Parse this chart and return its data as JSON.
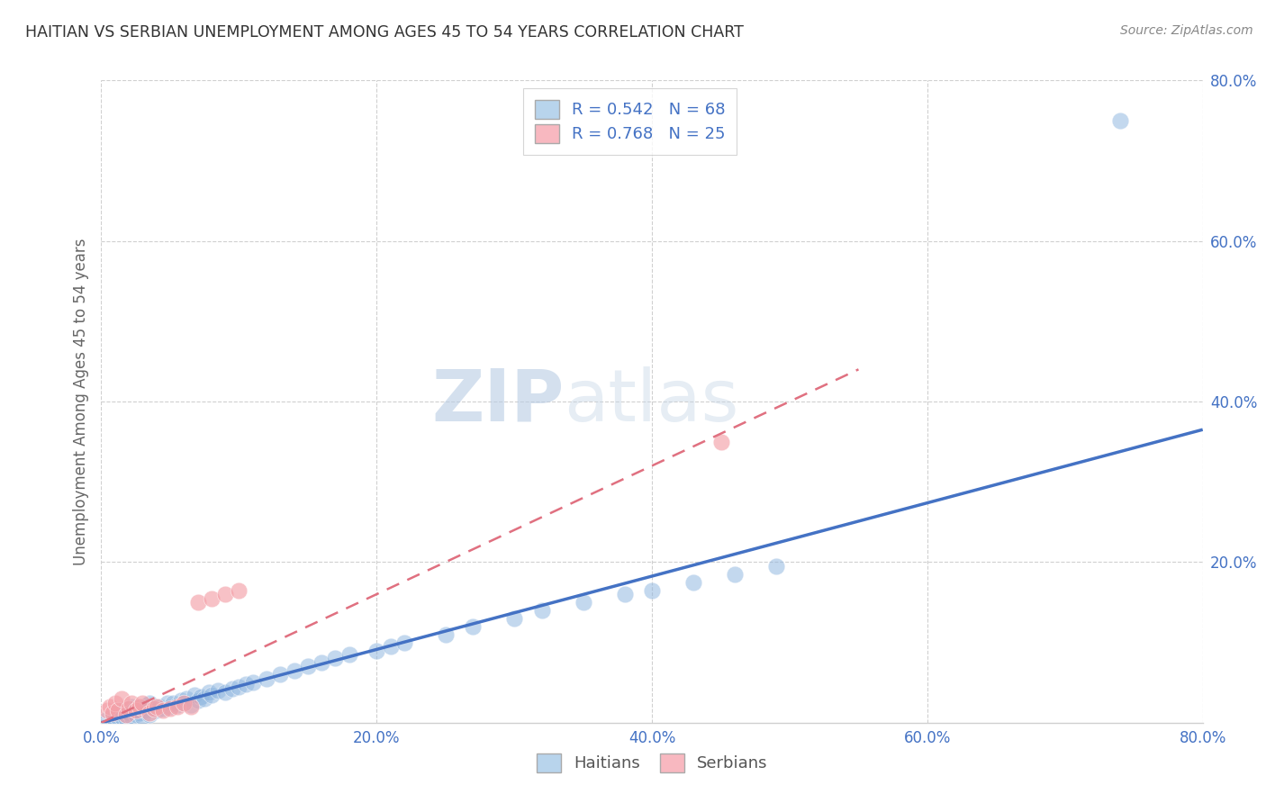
{
  "title": "HAITIAN VS SERBIAN UNEMPLOYMENT AMONG AGES 45 TO 54 YEARS CORRELATION CHART",
  "source": "Source: ZipAtlas.com",
  "ylabel": "Unemployment Among Ages 45 to 54 years",
  "xlim": [
    0.0,
    0.8
  ],
  "ylim": [
    0.0,
    0.8
  ],
  "xtick_labels": [
    "0.0%",
    "20.0%",
    "40.0%",
    "60.0%",
    "80.0%"
  ],
  "xtick_vals": [
    0.0,
    0.2,
    0.4,
    0.6,
    0.8
  ],
  "ytick_labels": [
    "20.0%",
    "40.0%",
    "60.0%",
    "80.0%"
  ],
  "ytick_vals": [
    0.2,
    0.4,
    0.6,
    0.8
  ],
  "haitian_color": "#92b8e0",
  "serbian_color": "#f4a0a8",
  "haitian_line_color": "#4472c4",
  "serbian_line_color": "#e07080",
  "haitian_R": 0.542,
  "haitian_N": 68,
  "serbian_R": 0.768,
  "serbian_N": 25,
  "legend_text_color": "#4472c4",
  "watermark_zip": "ZIP",
  "watermark_atlas": "atlas",
  "grid_color": "#d0d0d0",
  "title_color": "#333333",
  "source_color": "#888888",
  "ylabel_color": "#666666",
  "tick_color": "#4472c4",
  "haitian_scatter_x": [
    0.005,
    0.008,
    0.01,
    0.012,
    0.012,
    0.015,
    0.015,
    0.018,
    0.018,
    0.02,
    0.02,
    0.022,
    0.022,
    0.025,
    0.025,
    0.028,
    0.028,
    0.03,
    0.03,
    0.032,
    0.033,
    0.035,
    0.035,
    0.038,
    0.04,
    0.042,
    0.045,
    0.048,
    0.05,
    0.052,
    0.055,
    0.058,
    0.06,
    0.062,
    0.065,
    0.068,
    0.07,
    0.072,
    0.075,
    0.078,
    0.08,
    0.085,
    0.09,
    0.095,
    0.1,
    0.105,
    0.11,
    0.12,
    0.13,
    0.14,
    0.15,
    0.16,
    0.17,
    0.18,
    0.2,
    0.21,
    0.22,
    0.25,
    0.27,
    0.3,
    0.32,
    0.35,
    0.38,
    0.4,
    0.43,
    0.46,
    0.49,
    0.74
  ],
  "haitian_scatter_y": [
    0.005,
    0.008,
    0.01,
    0.006,
    0.012,
    0.008,
    0.015,
    0.01,
    0.005,
    0.012,
    0.018,
    0.008,
    0.02,
    0.01,
    0.015,
    0.012,
    0.02,
    0.008,
    0.018,
    0.015,
    0.022,
    0.01,
    0.025,
    0.018,
    0.015,
    0.02,
    0.018,
    0.025,
    0.02,
    0.025,
    0.022,
    0.028,
    0.025,
    0.03,
    0.022,
    0.035,
    0.028,
    0.032,
    0.03,
    0.038,
    0.035,
    0.04,
    0.038,
    0.042,
    0.045,
    0.048,
    0.05,
    0.055,
    0.06,
    0.065,
    0.07,
    0.075,
    0.08,
    0.085,
    0.09,
    0.095,
    0.1,
    0.11,
    0.12,
    0.13,
    0.14,
    0.15,
    0.16,
    0.165,
    0.175,
    0.185,
    0.195,
    0.75
  ],
  "serbian_scatter_x": [
    0.004,
    0.006,
    0.008,
    0.01,
    0.012,
    0.015,
    0.018,
    0.02,
    0.022,
    0.025,
    0.028,
    0.03,
    0.035,
    0.038,
    0.04,
    0.045,
    0.05,
    0.055,
    0.06,
    0.065,
    0.07,
    0.08,
    0.09,
    0.1,
    0.45
  ],
  "serbian_scatter_y": [
    0.015,
    0.02,
    0.012,
    0.025,
    0.015,
    0.03,
    0.01,
    0.018,
    0.025,
    0.015,
    0.02,
    0.025,
    0.012,
    0.018,
    0.02,
    0.015,
    0.018,
    0.02,
    0.025,
    0.02,
    0.15,
    0.155,
    0.16,
    0.165,
    0.35
  ],
  "haitian_line_x0": 0.0,
  "haitian_line_y0": 0.0,
  "haitian_line_x1": 0.8,
  "haitian_line_y1": 0.365,
  "serbian_line_x0": 0.0,
  "serbian_line_y0": 0.0,
  "serbian_line_x1": 0.55,
  "serbian_line_y1": 0.44
}
